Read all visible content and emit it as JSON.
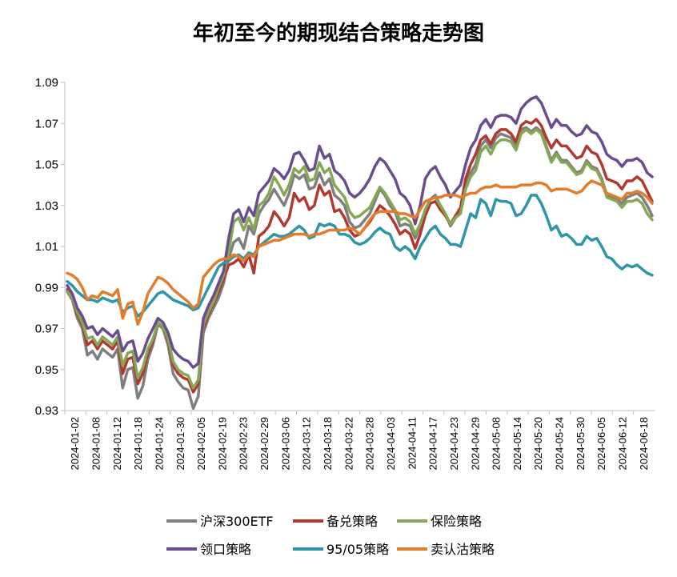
{
  "chart_data": {
    "type": "line",
    "title": "年初至今的期现结合策略走势图",
    "ylim": [
      0.93,
      1.09
    ],
    "yticks": [
      "0.93",
      "0.95",
      "0.97",
      "0.99",
      "1.01",
      "1.03",
      "1.05",
      "1.07",
      "1.09"
    ],
    "grid": false,
    "legend_position": "bottom",
    "x_tick_labels": [
      "2024-01-02",
      "2024-01-08",
      "2024-01-12",
      "2024-01-18",
      "2024-01-24",
      "2024-01-30",
      "2024-02-05",
      "2024-02-19",
      "2024-02-23",
      "2024-02-29",
      "2024-03-06",
      "2024-03-12",
      "2024-03-18",
      "2024-03-22",
      "2024-03-28",
      "2024-04-03",
      "2024-04-11",
      "2024-04-17",
      "2024-04-23",
      "2024-04-29",
      "2024-05-08",
      "2024-05-14",
      "2024-05-20",
      "2024-05-24",
      "2024-05-30",
      "2024-06-05",
      "2024-06-12",
      "2024-06-18"
    ],
    "series": [
      {
        "name": "沪深300ETF",
        "color": "#7f7f7f",
        "values": [
          0.988,
          0.984,
          0.975,
          0.97,
          0.957,
          0.959,
          0.955,
          0.96,
          0.958,
          0.956,
          0.96,
          0.941,
          0.95,
          0.951,
          0.936,
          0.942,
          0.955,
          0.962,
          0.972,
          0.97,
          0.962,
          0.948,
          0.944,
          0.941,
          0.94,
          0.931,
          0.937,
          0.968,
          0.975,
          0.98,
          0.985,
          0.992,
          1.004,
          1.012,
          1.014,
          1.009,
          1.02,
          1.016,
          1.026,
          1.03,
          1.033,
          1.038,
          1.034,
          1.03,
          1.036,
          1.045,
          1.043,
          1.045,
          1.038,
          1.039,
          1.046,
          1.04,
          1.043,
          1.035,
          1.033,
          1.03,
          1.022,
          1.019,
          1.02,
          1.023,
          1.026,
          1.032,
          1.038,
          1.035,
          1.03,
          1.027,
          1.02,
          1.021,
          1.02,
          1.014,
          1.02,
          1.028,
          1.033,
          1.035,
          1.03,
          1.026,
          1.02,
          1.024,
          1.027,
          1.04,
          1.046,
          1.05,
          1.059,
          1.062,
          1.058,
          1.063,
          1.065,
          1.064,
          1.063,
          1.059,
          1.067,
          1.068,
          1.066,
          1.068,
          1.066,
          1.059,
          1.052,
          1.056,
          1.052,
          1.052,
          1.049,
          1.046,
          1.047,
          1.052,
          1.049,
          1.048,
          1.043,
          1.035,
          1.034,
          1.033,
          1.031,
          1.034,
          1.035,
          1.036,
          1.034,
          1.03,
          1.025
        ]
      },
      {
        "name": "备兑策略",
        "color": "#b03a32",
        "values": [
          0.989,
          0.985,
          0.977,
          0.972,
          0.962,
          0.964,
          0.96,
          0.964,
          0.962,
          0.96,
          0.964,
          0.948,
          0.955,
          0.956,
          0.943,
          0.948,
          0.958,
          0.964,
          0.973,
          0.971,
          0.964,
          0.952,
          0.948,
          0.946,
          0.945,
          0.939,
          0.943,
          0.97,
          0.977,
          0.982,
          0.988,
          0.994,
          1.001,
          1.002,
          1.004,
          1.0,
          1.006,
          0.997,
          1.015,
          1.017,
          1.02,
          1.027,
          1.024,
          1.02,
          1.024,
          1.036,
          1.032,
          1.034,
          1.028,
          1.03,
          1.04,
          1.035,
          1.037,
          1.027,
          1.028,
          1.024,
          1.018,
          1.015,
          1.016,
          1.019,
          1.022,
          1.026,
          1.03,
          1.028,
          1.025,
          1.021,
          1.016,
          1.018,
          1.016,
          1.009,
          1.016,
          1.025,
          1.031,
          1.032,
          1.028,
          1.025,
          1.021,
          1.025,
          1.029,
          1.043,
          1.05,
          1.055,
          1.062,
          1.064,
          1.06,
          1.065,
          1.067,
          1.067,
          1.065,
          1.061,
          1.069,
          1.071,
          1.07,
          1.072,
          1.069,
          1.063,
          1.058,
          1.062,
          1.059,
          1.059,
          1.056,
          1.053,
          1.054,
          1.059,
          1.056,
          1.055,
          1.05,
          1.043,
          1.042,
          1.041,
          1.038,
          1.042,
          1.042,
          1.044,
          1.042,
          1.037,
          1.032
        ]
      },
      {
        "name": "保险策略",
        "color": "#84a853",
        "values": [
          0.988,
          0.985,
          0.978,
          0.973,
          0.965,
          0.966,
          0.962,
          0.966,
          0.964,
          0.962,
          0.966,
          0.952,
          0.958,
          0.959,
          0.946,
          0.951,
          0.96,
          0.965,
          0.973,
          0.971,
          0.965,
          0.954,
          0.95,
          0.948,
          0.947,
          0.941,
          0.945,
          0.972,
          0.978,
          0.983,
          0.99,
          0.996,
          1.007,
          1.022,
          1.024,
          1.018,
          1.024,
          1.018,
          1.03,
          1.032,
          1.036,
          1.044,
          1.04,
          1.035,
          1.04,
          1.048,
          1.046,
          1.049,
          1.042,
          1.043,
          1.051,
          1.046,
          1.048,
          1.04,
          1.037,
          1.034,
          1.027,
          1.024,
          1.025,
          1.027,
          1.029,
          1.034,
          1.039,
          1.036,
          1.032,
          1.028,
          1.023,
          1.024,
          1.022,
          1.016,
          1.021,
          1.028,
          1.033,
          1.034,
          1.03,
          1.026,
          1.021,
          1.024,
          1.026,
          1.038,
          1.044,
          1.047,
          1.056,
          1.059,
          1.055,
          1.06,
          1.062,
          1.062,
          1.061,
          1.057,
          1.065,
          1.067,
          1.065,
          1.067,
          1.065,
          1.058,
          1.051,
          1.055,
          1.051,
          1.051,
          1.048,
          1.045,
          1.046,
          1.051,
          1.048,
          1.047,
          1.042,
          1.034,
          1.033,
          1.032,
          1.029,
          1.032,
          1.032,
          1.033,
          1.031,
          1.026,
          1.023
        ]
      },
      {
        "name": "领口策略",
        "color": "#6b4d8f",
        "values": [
          0.991,
          0.987,
          0.98,
          0.976,
          0.97,
          0.971,
          0.967,
          0.97,
          0.968,
          0.966,
          0.969,
          0.959,
          0.963,
          0.964,
          0.954,
          0.958,
          0.965,
          0.97,
          0.975,
          0.973,
          0.968,
          0.96,
          0.957,
          0.955,
          0.954,
          0.951,
          0.953,
          0.975,
          0.981,
          0.986,
          0.992,
          0.998,
          1.014,
          1.026,
          1.028,
          1.022,
          1.029,
          1.025,
          1.036,
          1.039,
          1.042,
          1.048,
          1.046,
          1.043,
          1.047,
          1.055,
          1.056,
          1.052,
          1.047,
          1.048,
          1.059,
          1.053,
          1.055,
          1.047,
          1.045,
          1.042,
          1.036,
          1.034,
          1.036,
          1.039,
          1.043,
          1.049,
          1.053,
          1.051,
          1.047,
          1.043,
          1.036,
          1.034,
          1.03,
          1.021,
          1.03,
          1.043,
          1.047,
          1.049,
          1.044,
          1.04,
          1.034,
          1.037,
          1.04,
          1.05,
          1.058,
          1.062,
          1.069,
          1.072,
          1.068,
          1.073,
          1.074,
          1.074,
          1.073,
          1.07,
          1.077,
          1.08,
          1.082,
          1.083,
          1.08,
          1.074,
          1.068,
          1.072,
          1.069,
          1.069,
          1.066,
          1.064,
          1.065,
          1.069,
          1.066,
          1.065,
          1.061,
          1.055,
          1.053,
          1.052,
          1.049,
          1.052,
          1.052,
          1.053,
          1.051,
          1.046,
          1.044
        ]
      },
      {
        "name": "95/05策略",
        "color": "#2e96a8",
        "values": [
          0.993,
          0.991,
          0.988,
          0.986,
          0.984,
          0.984,
          0.983,
          0.985,
          0.984,
          0.983,
          0.984,
          0.978,
          0.98,
          0.981,
          0.976,
          0.978,
          0.981,
          0.984,
          0.987,
          0.988,
          0.986,
          0.984,
          0.983,
          0.982,
          0.981,
          0.979,
          0.98,
          0.985,
          0.99,
          0.995,
          1.0,
          1.002,
          1.003,
          1.005,
          1.006,
          1.004,
          1.007,
          1.006,
          1.01,
          1.012,
          1.014,
          1.016,
          1.015,
          1.015,
          1.016,
          1.018,
          1.02,
          1.018,
          1.014,
          1.015,
          1.021,
          1.02,
          1.021,
          1.02,
          1.016,
          1.016,
          1.015,
          1.012,
          1.011,
          1.012,
          1.014,
          1.017,
          1.019,
          1.017,
          1.016,
          1.01,
          1.008,
          1.01,
          1.008,
          1.004,
          1.01,
          1.014,
          1.018,
          1.02,
          1.016,
          1.014,
          1.011,
          1.011,
          1.01,
          1.018,
          1.026,
          1.024,
          1.033,
          1.031,
          1.025,
          1.033,
          1.032,
          1.032,
          1.031,
          1.025,
          1.026,
          1.03,
          1.035,
          1.035,
          1.031,
          1.025,
          1.018,
          1.02,
          1.015,
          1.016,
          1.014,
          1.011,
          1.011,
          1.015,
          1.013,
          1.014,
          1.01,
          1.005,
          1.004,
          1.001,
          0.999,
          1.001,
          1.0,
          1.001,
          0.999,
          0.997,
          0.996
        ]
      },
      {
        "name": "卖认沽策略",
        "color": "#e37d2c",
        "values": [
          0.997,
          0.996,
          0.994,
          0.99,
          0.984,
          0.986,
          0.985,
          0.988,
          0.987,
          0.986,
          0.989,
          0.975,
          0.982,
          0.983,
          0.972,
          0.978,
          0.987,
          0.991,
          0.995,
          0.994,
          0.992,
          0.989,
          0.987,
          0.985,
          0.983,
          0.98,
          0.982,
          0.995,
          0.998,
          1.001,
          1.003,
          1.004,
          1.004,
          1.006,
          1.005,
          1.003,
          1.006,
          1.005,
          1.01,
          1.011,
          1.012,
          1.013,
          1.013,
          1.014,
          1.015,
          1.016,
          1.016,
          1.016,
          1.015,
          1.016,
          1.016,
          1.017,
          1.018,
          1.018,
          1.018,
          1.018,
          1.019,
          1.018,
          1.016,
          1.019,
          1.023,
          1.026,
          1.027,
          1.027,
          1.027,
          1.027,
          1.026,
          1.026,
          1.025,
          1.024,
          1.028,
          1.032,
          1.033,
          1.034,
          1.034,
          1.035,
          1.035,
          1.035,
          1.034,
          1.035,
          1.036,
          1.036,
          1.038,
          1.039,
          1.039,
          1.04,
          1.039,
          1.039,
          1.039,
          1.039,
          1.04,
          1.04,
          1.04,
          1.041,
          1.041,
          1.04,
          1.037,
          1.038,
          1.038,
          1.038,
          1.037,
          1.036,
          1.037,
          1.04,
          1.042,
          1.041,
          1.04,
          1.036,
          1.035,
          1.034,
          1.033,
          1.036,
          1.036,
          1.037,
          1.036,
          1.034,
          1.031
        ]
      }
    ]
  }
}
